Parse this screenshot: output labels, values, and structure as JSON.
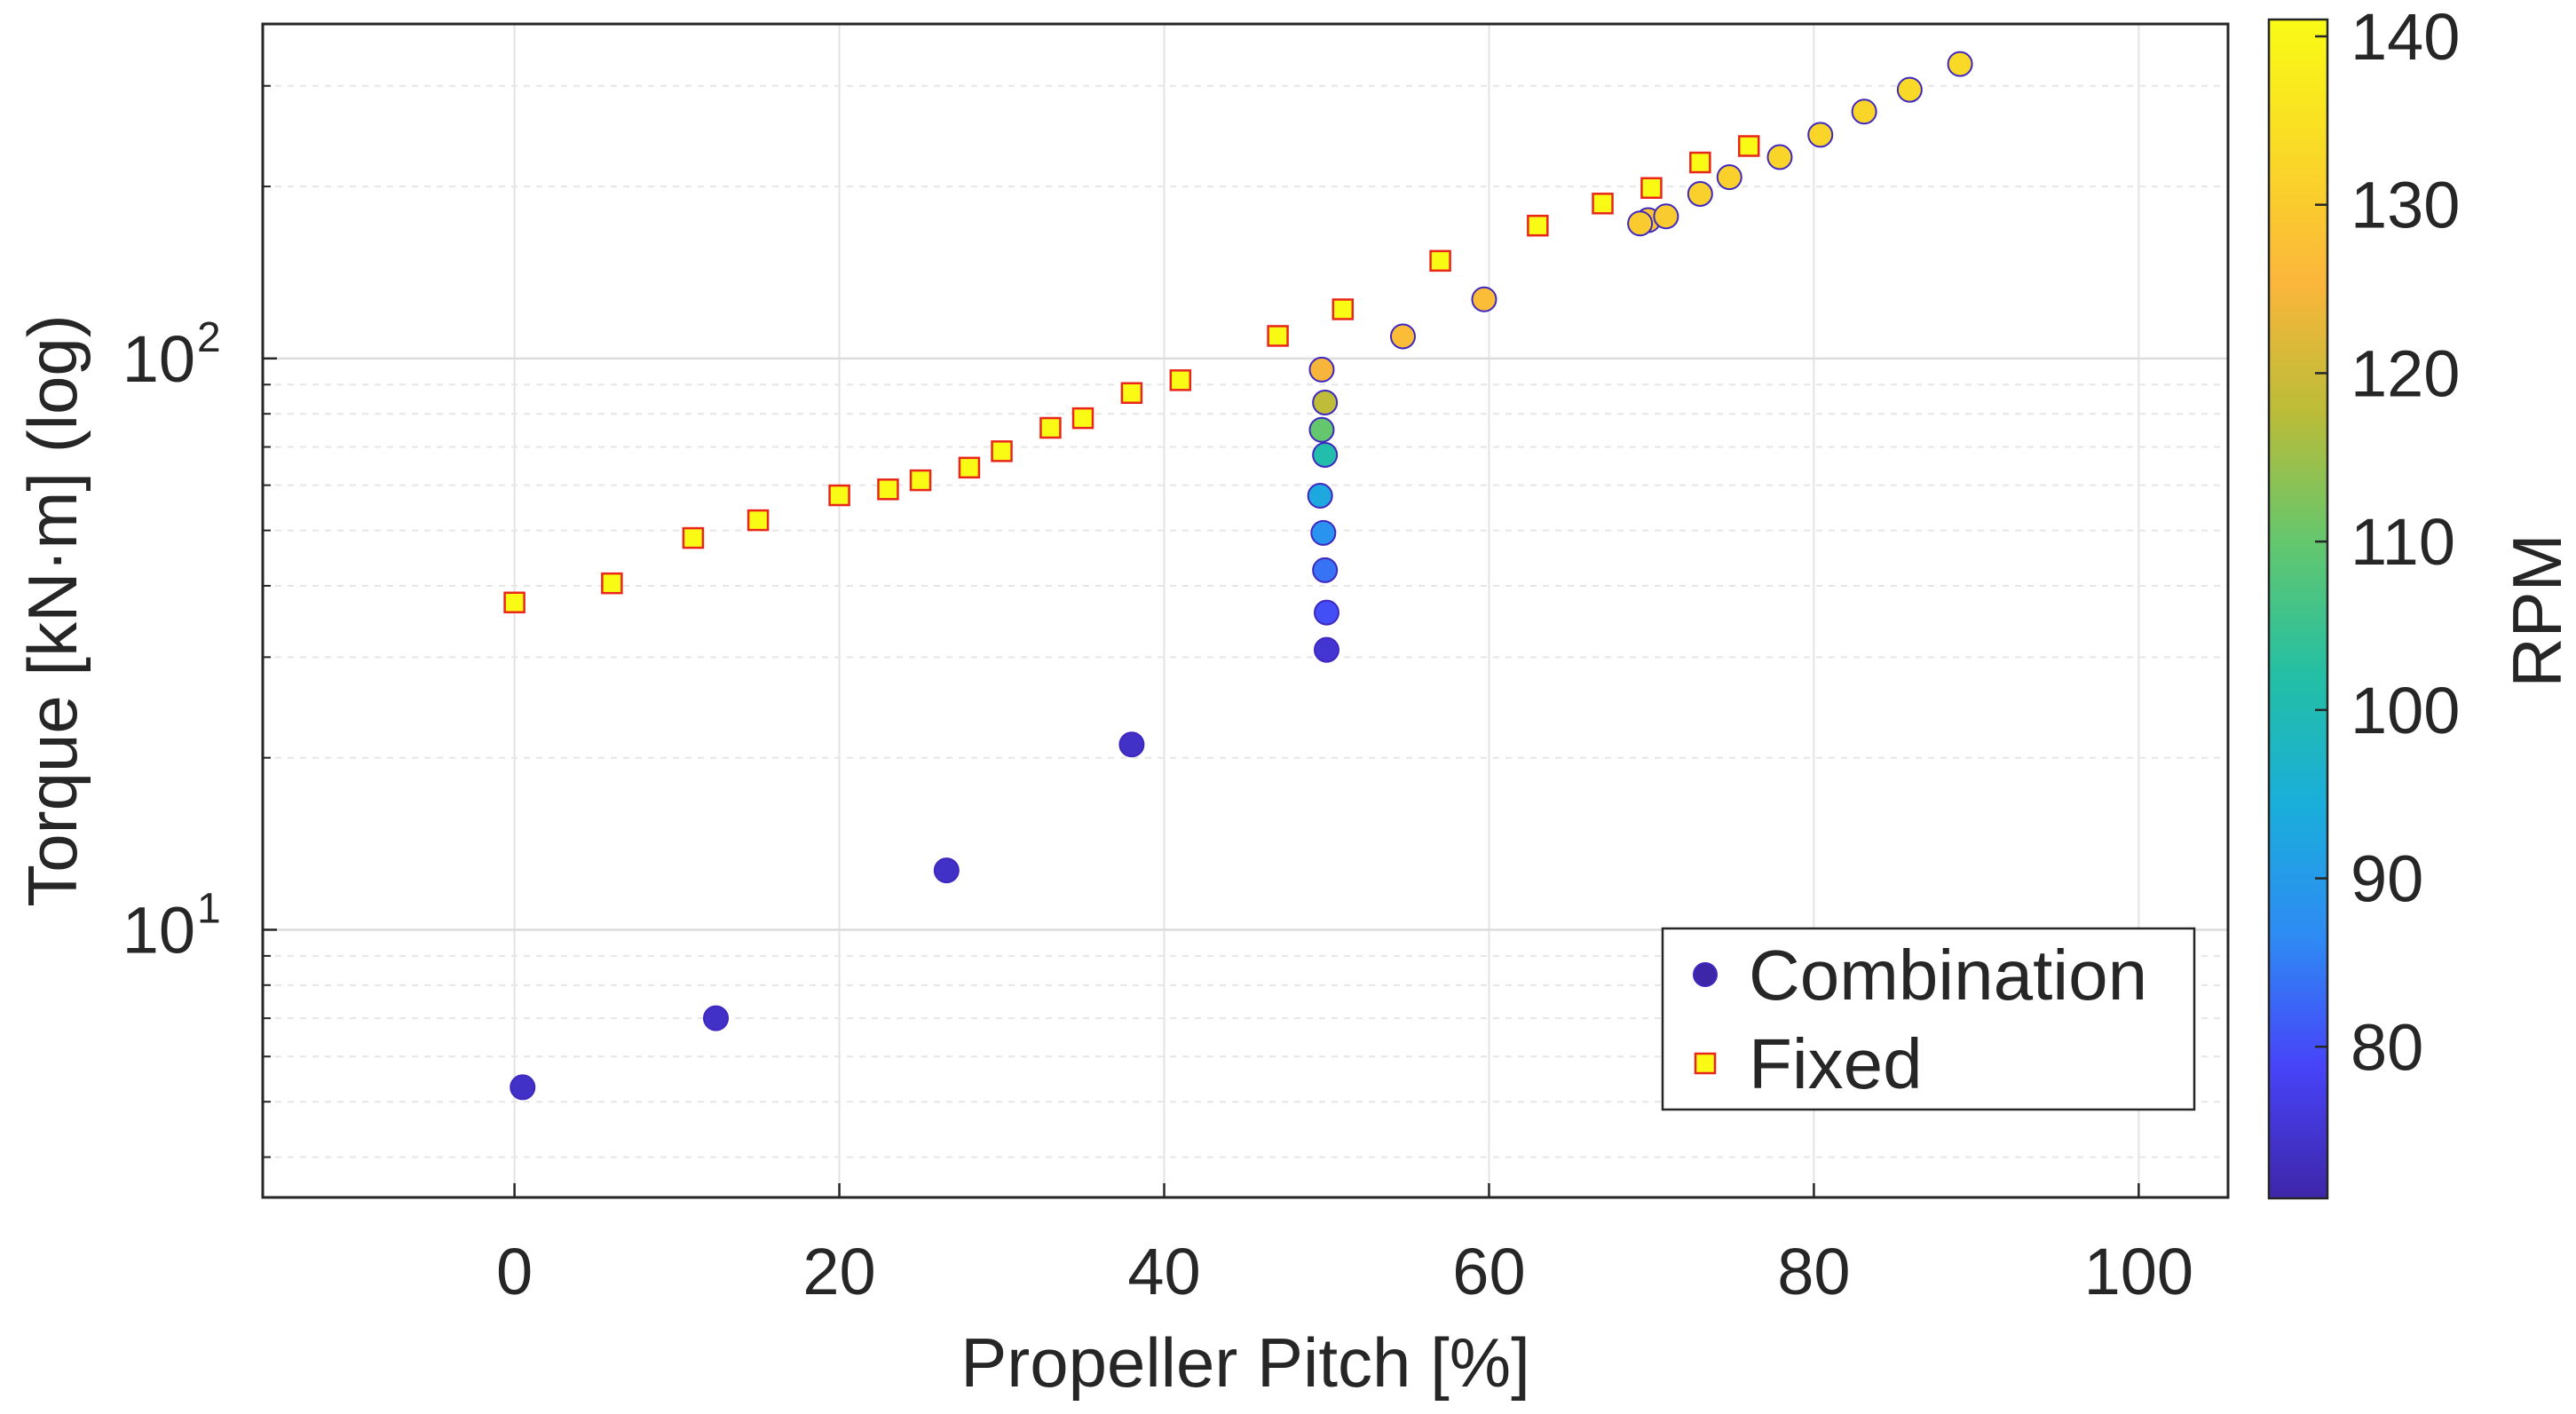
{
  "chart_data": {
    "type": "scatter",
    "title": "",
    "xlabel": "Propeller Pitch [%]",
    "ylabel": "Torque [kN·m] (log)",
    "yscale": "log",
    "xlim": [
      -15.5,
      105.5
    ],
    "ylim": [
      3.4,
      385
    ],
    "xticks": [
      0,
      20,
      40,
      60,
      80,
      100
    ],
    "xtick_labels": [
      "0",
      "20",
      "40",
      "60",
      "80",
      "100"
    ],
    "yticks": [
      {
        "value": 10,
        "base": "10",
        "exp": "1"
      },
      {
        "value": 100,
        "base": "10",
        "exp": "2"
      }
    ],
    "grid": true,
    "colorbar": {
      "label": "RPM",
      "range": [
        71,
        141
      ],
      "ticks": [
        80,
        90,
        100,
        110,
        120,
        130,
        140
      ],
      "tick_labels": [
        "80",
        "90",
        "100",
        "110",
        "120",
        "130",
        "140"
      ],
      "colormap": [
        "#3e26a8",
        "#4743f8",
        "#2e8bf3",
        "#1aaedb",
        "#24bfa4",
        "#63c76e",
        "#bbbc38",
        "#fbb63b",
        "#f9da26",
        "#f9fb15"
      ]
    },
    "legend": {
      "position": "bottom-right",
      "entries": [
        {
          "label": "Combination",
          "marker": "circle",
          "color": "#3e26a8"
        },
        {
          "label": "Fixed",
          "marker": "square",
          "color": "#f9fb15",
          "edge": "#e8261a"
        }
      ]
    },
    "series": [
      {
        "name": "Combination",
        "marker": "circle",
        "points": [
          {
            "x": 0.5,
            "y": 5.3,
            "rpm": 74
          },
          {
            "x": 12.4,
            "y": 7.0,
            "rpm": 74
          },
          {
            "x": 26.6,
            "y": 12.7,
            "rpm": 74
          },
          {
            "x": 38.0,
            "y": 21.1,
            "rpm": 74
          },
          {
            "x": 50.0,
            "y": 30.9,
            "rpm": 75
          },
          {
            "x": 50.0,
            "y": 35.9,
            "rpm": 80
          },
          {
            "x": 49.9,
            "y": 42.6,
            "rpm": 84
          },
          {
            "x": 49.8,
            "y": 49.5,
            "rpm": 88
          },
          {
            "x": 49.6,
            "y": 57.5,
            "rpm": 93
          },
          {
            "x": 49.9,
            "y": 67.8,
            "rpm": 101
          },
          {
            "x": 49.7,
            "y": 75.0,
            "rpm": 110
          },
          {
            "x": 49.9,
            "y": 83.7,
            "rpm": 118
          },
          {
            "x": 49.7,
            "y": 95.6,
            "rpm": 125
          },
          {
            "x": 54.7,
            "y": 109.3,
            "rpm": 127
          },
          {
            "x": 59.7,
            "y": 126.9,
            "rpm": 127
          },
          {
            "x": 69.8,
            "y": 174.6,
            "rpm": 129
          },
          {
            "x": 69.3,
            "y": 172.3,
            "rpm": 130
          },
          {
            "x": 70.9,
            "y": 177.3,
            "rpm": 130
          },
          {
            "x": 73.0,
            "y": 194.1,
            "rpm": 131
          },
          {
            "x": 74.8,
            "y": 207.6,
            "rpm": 131
          },
          {
            "x": 77.9,
            "y": 225.1,
            "rpm": 132
          },
          {
            "x": 80.4,
            "y": 246.3,
            "rpm": 132
          },
          {
            "x": 83.1,
            "y": 270.4,
            "rpm": 132
          },
          {
            "x": 85.9,
            "y": 295.3,
            "rpm": 133
          },
          {
            "x": 89.0,
            "y": 327.6,
            "rpm": 133
          }
        ]
      },
      {
        "name": "Fixed",
        "marker": "square",
        "points": [
          {
            "x": 0,
            "y": 37.4
          },
          {
            "x": 6,
            "y": 40.4
          },
          {
            "x": 11,
            "y": 48.5
          },
          {
            "x": 15,
            "y": 52.1
          },
          {
            "x": 20,
            "y": 57.6
          },
          {
            "x": 23,
            "y": 59.0
          },
          {
            "x": 25,
            "y": 61.2
          },
          {
            "x": 28,
            "y": 64.4
          },
          {
            "x": 30,
            "y": 68.8
          },
          {
            "x": 33,
            "y": 75.6
          },
          {
            "x": 35,
            "y": 78.6
          },
          {
            "x": 38,
            "y": 87.0
          },
          {
            "x": 41,
            "y": 91.6
          },
          {
            "x": 47,
            "y": 109.5
          },
          {
            "x": 51,
            "y": 121.9
          },
          {
            "x": 57,
            "y": 148.2
          },
          {
            "x": 63,
            "y": 170.8
          },
          {
            "x": 67,
            "y": 186.7
          },
          {
            "x": 70,
            "y": 198.8
          },
          {
            "x": 73,
            "y": 220.3
          },
          {
            "x": 76,
            "y": 235.4
          }
        ]
      }
    ]
  }
}
